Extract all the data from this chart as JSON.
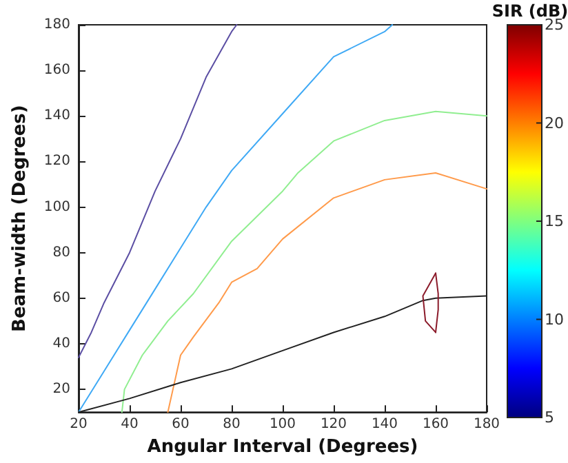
{
  "chart_data": {
    "type": "line",
    "xlabel": "Angular Interval (Degrees)",
    "ylabel": "Beam-width (Degrees)",
    "clabel": "SIR (dB)",
    "clim": [
      5,
      25
    ],
    "cticks": [
      5,
      10,
      15,
      20,
      25
    ],
    "xlim": [
      20,
      180
    ],
    "ylim": [
      10,
      180
    ],
    "xticks": [
      20,
      40,
      60,
      80,
      100,
      120,
      140,
      160,
      180
    ],
    "yticks": [
      20,
      40,
      60,
      80,
      100,
      120,
      140,
      160,
      180
    ],
    "grid": false,
    "marker": "none",
    "line_style": "solid",
    "series": [
      {
        "color": "#5b4ea3",
        "x": [
          20,
          25,
          30,
          40,
          50,
          60,
          70,
          80,
          82
        ],
        "values": [
          34,
          45,
          58,
          80,
          107,
          130,
          157,
          177,
          180
        ]
      },
      {
        "color": "#3fa9f5",
        "x": [
          20,
          30,
          40,
          50,
          60,
          70,
          80,
          100,
          120,
          140,
          143
        ],
        "values": [
          10,
          28,
          46,
          64,
          82,
          100,
          116,
          141,
          166,
          177,
          180
        ]
      },
      {
        "color": "#90ee90",
        "x": [
          37,
          38,
          45,
          55,
          65,
          80,
          100,
          106,
          120,
          140,
          160,
          180
        ],
        "values": [
          10,
          20,
          35,
          50,
          62,
          85,
          107,
          115,
          129,
          138,
          142,
          140
        ]
      },
      {
        "color": "#ff9a4a",
        "x": [
          55,
          57,
          60,
          65,
          75,
          80,
          90,
          100,
          120,
          140,
          160,
          180
        ],
        "values": [
          10,
          20,
          35,
          43,
          58,
          67,
          73,
          86,
          104,
          112,
          115,
          108
        ]
      },
      {
        "color": "#222222",
        "x": [
          20,
          40,
          60,
          80,
          100,
          120,
          140,
          155,
          160,
          180
        ],
        "values": [
          10,
          16,
          23,
          29,
          37,
          45,
          52,
          59,
          60,
          61
        ]
      },
      {
        "color": "#8b1a2a",
        "x": [
          160,
          155,
          156,
          160
        ],
        "values": [
          71,
          61,
          50,
          45
        ]
      },
      {
        "color": "#8b1a2a",
        "x": [
          160,
          161,
          161,
          160
        ],
        "values": [
          71,
          62,
          55,
          45
        ]
      }
    ]
  }
}
